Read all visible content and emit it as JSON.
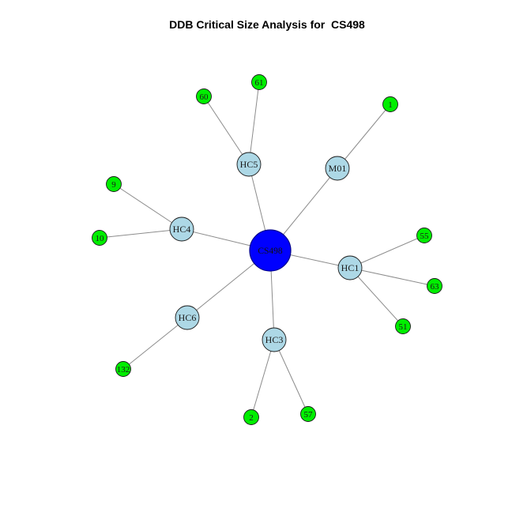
{
  "title": "DDB Critical Size Analysis for  CS498",
  "colors": {
    "root": "#0000ff",
    "hub": "#add8e6",
    "leaf": "#00ee00",
    "edge": "#8c8c8c",
    "outline": "#1a1a1a"
  },
  "nodes": [
    {
      "id": "CS498",
      "label": "CS498",
      "type": "root"
    },
    {
      "id": "HC5",
      "label": "HC5",
      "type": "hub"
    },
    {
      "id": "M01",
      "label": "M01",
      "type": "hub"
    },
    {
      "id": "HC4",
      "label": "HC4",
      "type": "hub"
    },
    {
      "id": "HC1",
      "label": "HC1",
      "type": "hub"
    },
    {
      "id": "HC6",
      "label": "HC6",
      "type": "hub"
    },
    {
      "id": "HC3",
      "label": "HC3",
      "type": "hub"
    },
    {
      "id": "61",
      "label": "61",
      "type": "leaf"
    },
    {
      "id": "60",
      "label": "60",
      "type": "leaf"
    },
    {
      "id": "1",
      "label": "1",
      "type": "leaf"
    },
    {
      "id": "9",
      "label": "9",
      "type": "leaf"
    },
    {
      "id": "10",
      "label": "10",
      "type": "leaf"
    },
    {
      "id": "55",
      "label": "55",
      "type": "leaf"
    },
    {
      "id": "63",
      "label": "63",
      "type": "leaf"
    },
    {
      "id": "51",
      "label": "51",
      "type": "leaf"
    },
    {
      "id": "132",
      "label": "132",
      "type": "leaf"
    },
    {
      "id": "2",
      "label": "2",
      "type": "leaf"
    },
    {
      "id": "57",
      "label": "57",
      "type": "leaf"
    }
  ],
  "edges": [
    [
      "CS498",
      "HC5"
    ],
    [
      "CS498",
      "M01"
    ],
    [
      "CS498",
      "HC4"
    ],
    [
      "CS498",
      "HC1"
    ],
    [
      "CS498",
      "HC6"
    ],
    [
      "CS498",
      "HC3"
    ],
    [
      "HC5",
      "61"
    ],
    [
      "HC5",
      "60"
    ],
    [
      "M01",
      "1"
    ],
    [
      "HC4",
      "9"
    ],
    [
      "HC4",
      "10"
    ],
    [
      "HC1",
      "55"
    ],
    [
      "HC1",
      "63"
    ],
    [
      "HC1",
      "51"
    ],
    [
      "HC6",
      "132"
    ],
    [
      "HC3",
      "2"
    ],
    [
      "HC3",
      "57"
    ]
  ]
}
